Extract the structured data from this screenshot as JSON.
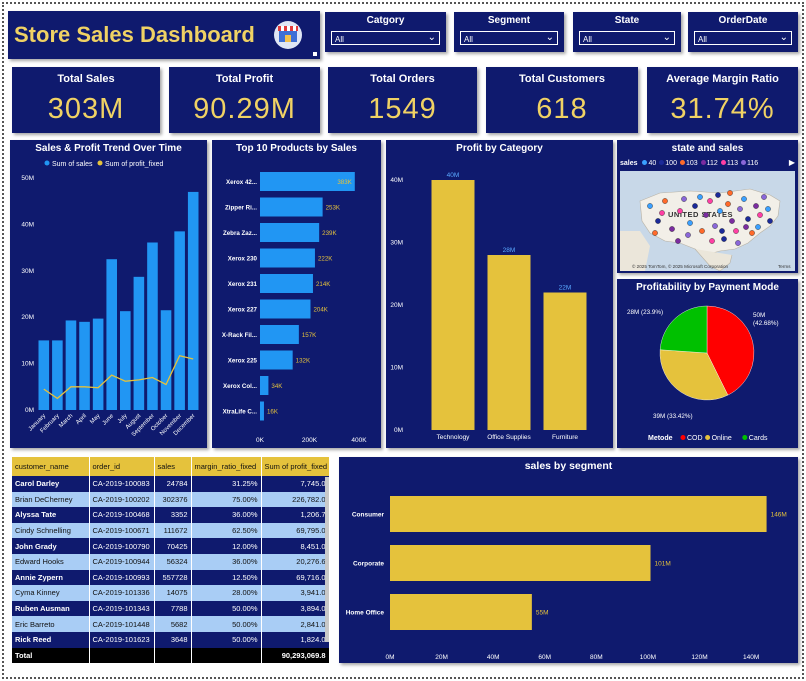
{
  "title": "Store Sales Dashboard",
  "slicers": [
    {
      "label": "Catgory",
      "value": "All"
    },
    {
      "label": "Segment",
      "value": "All"
    },
    {
      "label": "State",
      "value": "All"
    },
    {
      "label": "OrderDate",
      "value": "All"
    }
  ],
  "kpis": [
    {
      "label": "Total Sales",
      "value": "303M"
    },
    {
      "label": "Total Profit",
      "value": "90.29M"
    },
    {
      "label": "Total Orders",
      "value": "1549"
    },
    {
      "label": "Total Customers",
      "value": "618"
    },
    {
      "label": "Average Margin Ratio",
      "value": "31.74%"
    }
  ],
  "colors": {
    "navy": "#0f1a6e",
    "gold": "#e5c23c",
    "blue": "#2196f3",
    "red": "#ff0000",
    "green": "#00c000"
  },
  "trend": {
    "title": "Sales & Profit Trend Over Time",
    "legend": [
      "Sum of sales",
      "Sum of profit_fixed"
    ],
    "months": [
      "January",
      "February",
      "March",
      "April",
      "May",
      "June",
      "July",
      "August",
      "September",
      "October",
      "November",
      "December"
    ],
    "sales": [
      15,
      15,
      19.3,
      19,
      19.7,
      32.5,
      21.3,
      28.7,
      36.1,
      21.5,
      38.5,
      47
    ],
    "profit": [
      4.5,
      2.5,
      5,
      5,
      4.8,
      7.5,
      6.2,
      6.5,
      7,
      5.5,
      11.7,
      11
    ],
    "yticks": [
      "0M",
      "10M",
      "20M",
      "30M",
      "40M",
      "50M"
    ],
    "ymax": 50
  },
  "top10": {
    "title": "Top 10 Products by Sales",
    "names": [
      "Xerox 42...",
      "Zipper Ri...",
      "Zebra Zaz...",
      "Xerox 230",
      "Xerox 231",
      "Xerox 227",
      "X-Rack Fil...",
      "Xerox 225",
      "Xerox Col...",
      "XtraLife C..."
    ],
    "values": [
      383,
      253,
      239,
      222,
      214,
      204,
      157,
      132,
      34,
      16
    ],
    "labels": [
      "383K",
      "253K",
      "239K",
      "222K",
      "214K",
      "204K",
      "157K",
      "132K",
      "34K",
      "16K"
    ],
    "ticks": [
      "0K",
      "200K",
      "400K"
    ],
    "max": 400
  },
  "category": {
    "title": "Profit by Category",
    "names": [
      "Technology",
      "Office Supplies",
      "Furniture"
    ],
    "values": [
      40,
      28,
      22
    ],
    "labels": [
      "40M",
      "28M",
      "22M"
    ],
    "ticks": [
      "0M",
      "10M",
      "20M",
      "30M",
      "40M"
    ],
    "max": 40
  },
  "map": {
    "title": "state and sales",
    "legend_label": "sales",
    "legend_items": [
      {
        "label": "40",
        "color": "#3aa0ff"
      },
      {
        "label": "100",
        "color": "#1b2a99"
      },
      {
        "label": "103",
        "color": "#ff6a2a"
      },
      {
        "label": "112",
        "color": "#7b2ca0"
      },
      {
        "label": "113",
        "color": "#ff3fa4"
      },
      {
        "label": "116",
        "color": "#8a67d8"
      }
    ],
    "country_label": "UNITED STATES",
    "credit": "© 2025 TomTom, © 2025 Microsoft Corporation",
    "terms": "Terms"
  },
  "payment": {
    "title": "Profitability by Payment Mode",
    "legend_label": "Metode",
    "slices": [
      {
        "name": "COD",
        "value": 42.68,
        "label": "50M (42.68%)",
        "color": "#ff0000"
      },
      {
        "name": "Online",
        "value": 33.42,
        "label": "39M (33.42%)",
        "color": "#e5c23c"
      },
      {
        "name": "Cards",
        "value": 23.9,
        "label": "28M (23.9%)",
        "color": "#00c000"
      }
    ]
  },
  "table": {
    "headers": [
      "customer_name",
      "order_id",
      "sales",
      "margin_ratio_fixed",
      "Sum of profit_fixed"
    ],
    "rows": [
      [
        "Carol Darley",
        "CA-2019-100083",
        "24784",
        "31.25%",
        "7,745.0"
      ],
      [
        "Brian DeCherney",
        "CA-2019-100202",
        "302376",
        "75.00%",
        "226,782.0"
      ],
      [
        "Alyssa Tate",
        "CA-2019-100468",
        "3352",
        "36.00%",
        "1,206.7"
      ],
      [
        "Cindy Schnelling",
        "CA-2019-100671",
        "111672",
        "62.50%",
        "69,795.0"
      ],
      [
        "John Grady",
        "CA-2019-100790",
        "70425",
        "12.00%",
        "8,451.0"
      ],
      [
        "Edward Hooks",
        "CA-2019-100944",
        "56324",
        "36.00%",
        "20,276.6"
      ],
      [
        "Annie Zypern",
        "CA-2019-100993",
        "557728",
        "12.50%",
        "69,716.0"
      ],
      [
        "Cyma Kinney",
        "CA-2019-101336",
        "14075",
        "28.00%",
        "3,941.0"
      ],
      [
        "Ruben Ausman",
        "CA-2019-101343",
        "7788",
        "50.00%",
        "3,894.0"
      ],
      [
        "Eric Barreto",
        "CA-2019-101448",
        "5682",
        "50.00%",
        "2,841.0"
      ],
      [
        "Rick Reed",
        "CA-2019-101623",
        "3648",
        "50.00%",
        "1,824.0"
      ]
    ],
    "total_label": "Total",
    "total_value": "90,293,069.8"
  },
  "segment": {
    "title": "sales by segment",
    "names": [
      "Consumer",
      "Corporate",
      "Home Office"
    ],
    "values": [
      146,
      101,
      55
    ],
    "labels": [
      "146M",
      "101M",
      "55M"
    ],
    "ticks": [
      "0M",
      "20M",
      "40M",
      "60M",
      "80M",
      "100M",
      "120M",
      "140M"
    ],
    "max": 145
  },
  "chart_data": [
    {
      "type": "bar",
      "title": "Sales & Profit Trend Over Time",
      "categories": [
        "January",
        "February",
        "March",
        "April",
        "May",
        "June",
        "July",
        "August",
        "September",
        "October",
        "November",
        "December"
      ],
      "series": [
        {
          "name": "Sum of sales",
          "values": [
            15,
            15,
            19.3,
            19,
            19.7,
            32.5,
            21.3,
            28.7,
            36.1,
            21.5,
            38.5,
            47
          ]
        },
        {
          "name": "Sum of profit_fixed",
          "values": [
            4.5,
            2.5,
            5,
            5,
            4.8,
            7.5,
            6.2,
            6.5,
            7,
            5.5,
            11.7,
            11
          ]
        }
      ],
      "ylim": [
        0,
        50
      ]
    },
    {
      "type": "bar",
      "title": "Top 10 Products by Sales",
      "categories": [
        "Xerox 42...",
        "Zipper Ri...",
        "Zebra Zaz...",
        "Xerox 230",
        "Xerox 231",
        "Xerox 227",
        "X-Rack Fil...",
        "Xerox 225",
        "Xerox Col...",
        "XtraLife C..."
      ],
      "values": [
        383,
        253,
        239,
        222,
        214,
        204,
        157,
        132,
        34,
        16
      ]
    },
    {
      "type": "bar",
      "title": "Profit by Category",
      "categories": [
        "Technology",
        "Office Supplies",
        "Furniture"
      ],
      "values": [
        40,
        28,
        22
      ]
    },
    {
      "type": "pie",
      "title": "Profitability by Payment Mode",
      "categories": [
        "COD",
        "Online",
        "Cards"
      ],
      "values": [
        42.68,
        33.42,
        23.9
      ]
    },
    {
      "type": "bar",
      "title": "sales by segment",
      "categories": [
        "Consumer",
        "Corporate",
        "Home Office"
      ],
      "values": [
        146,
        101,
        55
      ]
    }
  ]
}
